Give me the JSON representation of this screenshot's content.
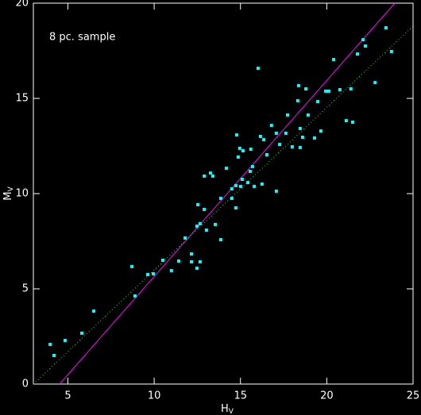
{
  "chart_data": {
    "type": "scatter",
    "annotation": "8 pc. sample",
    "x_label": {
      "text": "H",
      "subscript": "V"
    },
    "y_label": {
      "text": "M",
      "subscript": "V"
    },
    "xlim": [
      3,
      25
    ],
    "ylim": [
      0,
      20
    ],
    "xticks": [
      5,
      10,
      15,
      20,
      25
    ],
    "yticks": [
      0,
      5,
      10,
      15,
      20
    ],
    "series": [
      {
        "color": "#00ffff",
        "marker": "square",
        "x": [
          3.97,
          4.2,
          4.84,
          5.81,
          6.5,
          8.71,
          8.89,
          9.63,
          9.95,
          10.5,
          11.0,
          11.42,
          11.79,
          12.16,
          12.16,
          12.48,
          12.66,
          12.48,
          12.66,
          13.03,
          12.9,
          12.53,
          12.9,
          13.26,
          13.4,
          13.54,
          13.86,
          13.86,
          14.18,
          14.5,
          14.5,
          14.73,
          14.73,
          14.78,
          14.87,
          14.96,
          15.1,
          15.01,
          15.15,
          15.43,
          15.56,
          15.6,
          15.7,
          15.8,
          16.02,
          16.16,
          16.25,
          16.35,
          16.53,
          16.8,
          17.08,
          17.27,
          17.08,
          17.63,
          17.73,
          18.0,
          18.46,
          18.46,
          18.32,
          18.37,
          18.6,
          18.79,
          18.92,
          19.29,
          19.48,
          19.66,
          19.94,
          20.12,
          20.4,
          20.76,
          21.13,
          21.4,
          21.5,
          21.78,
          22.1,
          22.24,
          22.8,
          23.43,
          23.75
        ],
        "values": [
          2.08,
          1.5,
          2.29,
          2.67,
          3.83,
          6.17,
          4.63,
          5.75,
          5.79,
          6.5,
          5.96,
          6.46,
          7.67,
          6.83,
          6.42,
          6.08,
          6.42,
          8.29,
          8.42,
          8.08,
          9.17,
          9.42,
          10.92,
          11.08,
          10.92,
          8.38,
          9.75,
          7.58,
          11.33,
          10.25,
          9.75,
          9.25,
          10.42,
          13.08,
          11.92,
          12.38,
          10.75,
          10.38,
          12.25,
          10.58,
          11.17,
          12.33,
          11.42,
          10.38,
          16.58,
          13.0,
          10.5,
          12.83,
          12.04,
          13.58,
          10.13,
          12.58,
          13.17,
          13.17,
          14.13,
          12.46,
          12.42,
          13.42,
          14.88,
          15.67,
          12.96,
          15.5,
          14.13,
          12.92,
          14.83,
          13.29,
          15.38,
          15.38,
          17.04,
          15.46,
          13.83,
          15.5,
          13.75,
          17.33,
          18.08,
          17.75,
          15.83,
          18.71,
          17.46
        ]
      }
    ],
    "lines": [
      {
        "color": "#ff00ff",
        "dash": "solid",
        "x": [
          4.52,
          23.94
        ],
        "values": [
          0,
          20
        ]
      },
      {
        "color": "#00ff00",
        "dash": "dotted",
        "x": [
          3,
          25
        ],
        "values": [
          0,
          18.8
        ]
      }
    ]
  }
}
